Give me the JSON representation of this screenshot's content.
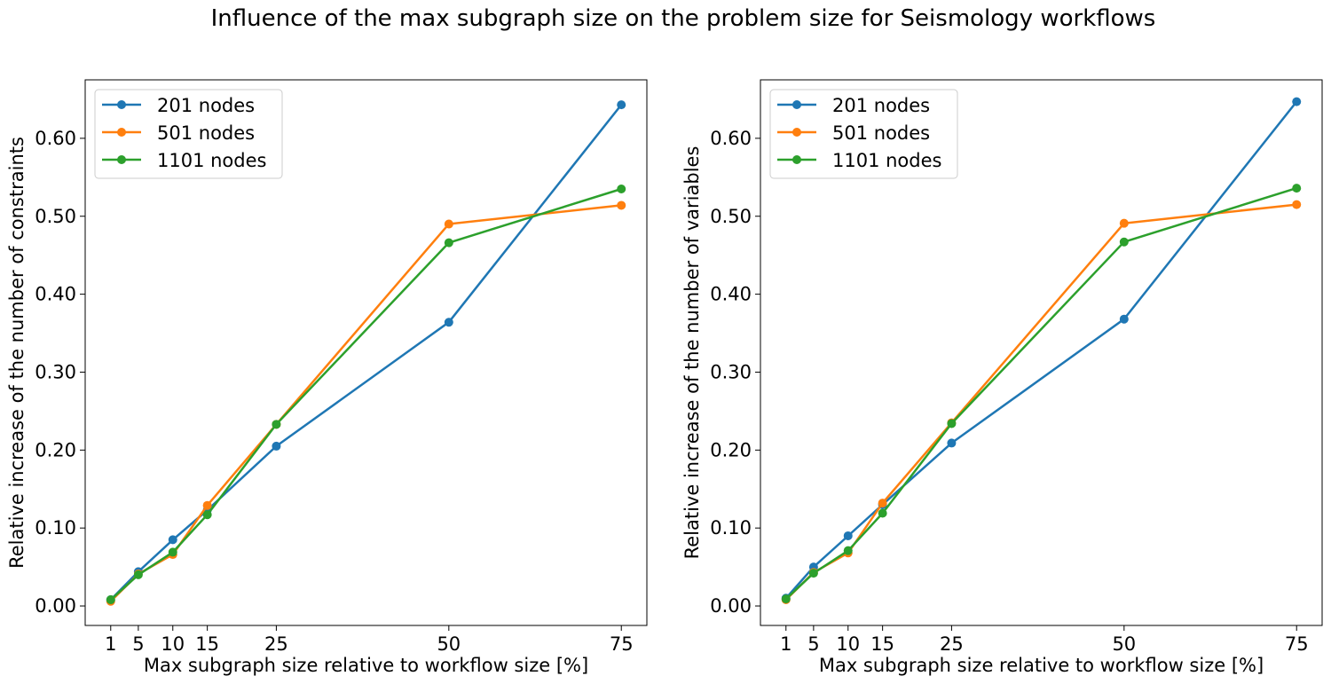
{
  "figure": {
    "title": "Influence of the max subgraph size on the problem size for Seismology workflows"
  },
  "colors": {
    "series": [
      "#1f77b4",
      "#ff7f0e",
      "#2ca02c"
    ]
  },
  "chart_data": [
    {
      "type": "line",
      "xlabel": "Max subgraph size relative to workflow size [%]",
      "ylabel": "Relative increase of the number of constraints",
      "x": [
        1,
        5,
        10,
        15,
        25,
        50,
        75
      ],
      "x_ticks": [
        "1",
        "5",
        "10",
        "15",
        "25",
        "50",
        "75"
      ],
      "xlim": [
        -2.7,
        78.7
      ],
      "ylim": [
        -0.025,
        0.675
      ],
      "y_ticks": [
        "0.00",
        "0.10",
        "0.20",
        "0.30",
        "0.40",
        "0.50",
        "0.60"
      ],
      "legend_position": "top-left",
      "grid": false,
      "series": [
        {
          "name": "201 nodes",
          "values": [
            0.008,
            0.044,
            0.085,
            0.123,
            0.205,
            0.364,
            0.643
          ]
        },
        {
          "name": "501 nodes",
          "values": [
            0.006,
            0.041,
            0.066,
            0.129,
            0.233,
            0.49,
            0.514
          ]
        },
        {
          "name": "1101 nodes",
          "values": [
            0.008,
            0.04,
            0.069,
            0.117,
            0.233,
            0.466,
            0.535
          ]
        }
      ]
    },
    {
      "type": "line",
      "xlabel": "Max subgraph size relative to workflow size [%]",
      "ylabel": "Relative increase of the number of variables",
      "x": [
        1,
        5,
        10,
        15,
        25,
        50,
        75
      ],
      "x_ticks": [
        "1",
        "5",
        "10",
        "15",
        "25",
        "50",
        "75"
      ],
      "xlim": [
        -2.7,
        78.7
      ],
      "ylim": [
        -0.025,
        0.675
      ],
      "y_ticks": [
        "0.00",
        "0.10",
        "0.20",
        "0.30",
        "0.40",
        "0.50",
        "0.60"
      ],
      "legend_position": "top-left",
      "grid": false,
      "series": [
        {
          "name": "201 nodes",
          "values": [
            0.01,
            0.05,
            0.09,
            0.13,
            0.209,
            0.368,
            0.647
          ]
        },
        {
          "name": "501 nodes",
          "values": [
            0.008,
            0.043,
            0.068,
            0.132,
            0.235,
            0.491,
            0.515
          ]
        },
        {
          "name": "1101 nodes",
          "values": [
            0.009,
            0.042,
            0.071,
            0.119,
            0.234,
            0.467,
            0.536
          ]
        }
      ]
    }
  ]
}
